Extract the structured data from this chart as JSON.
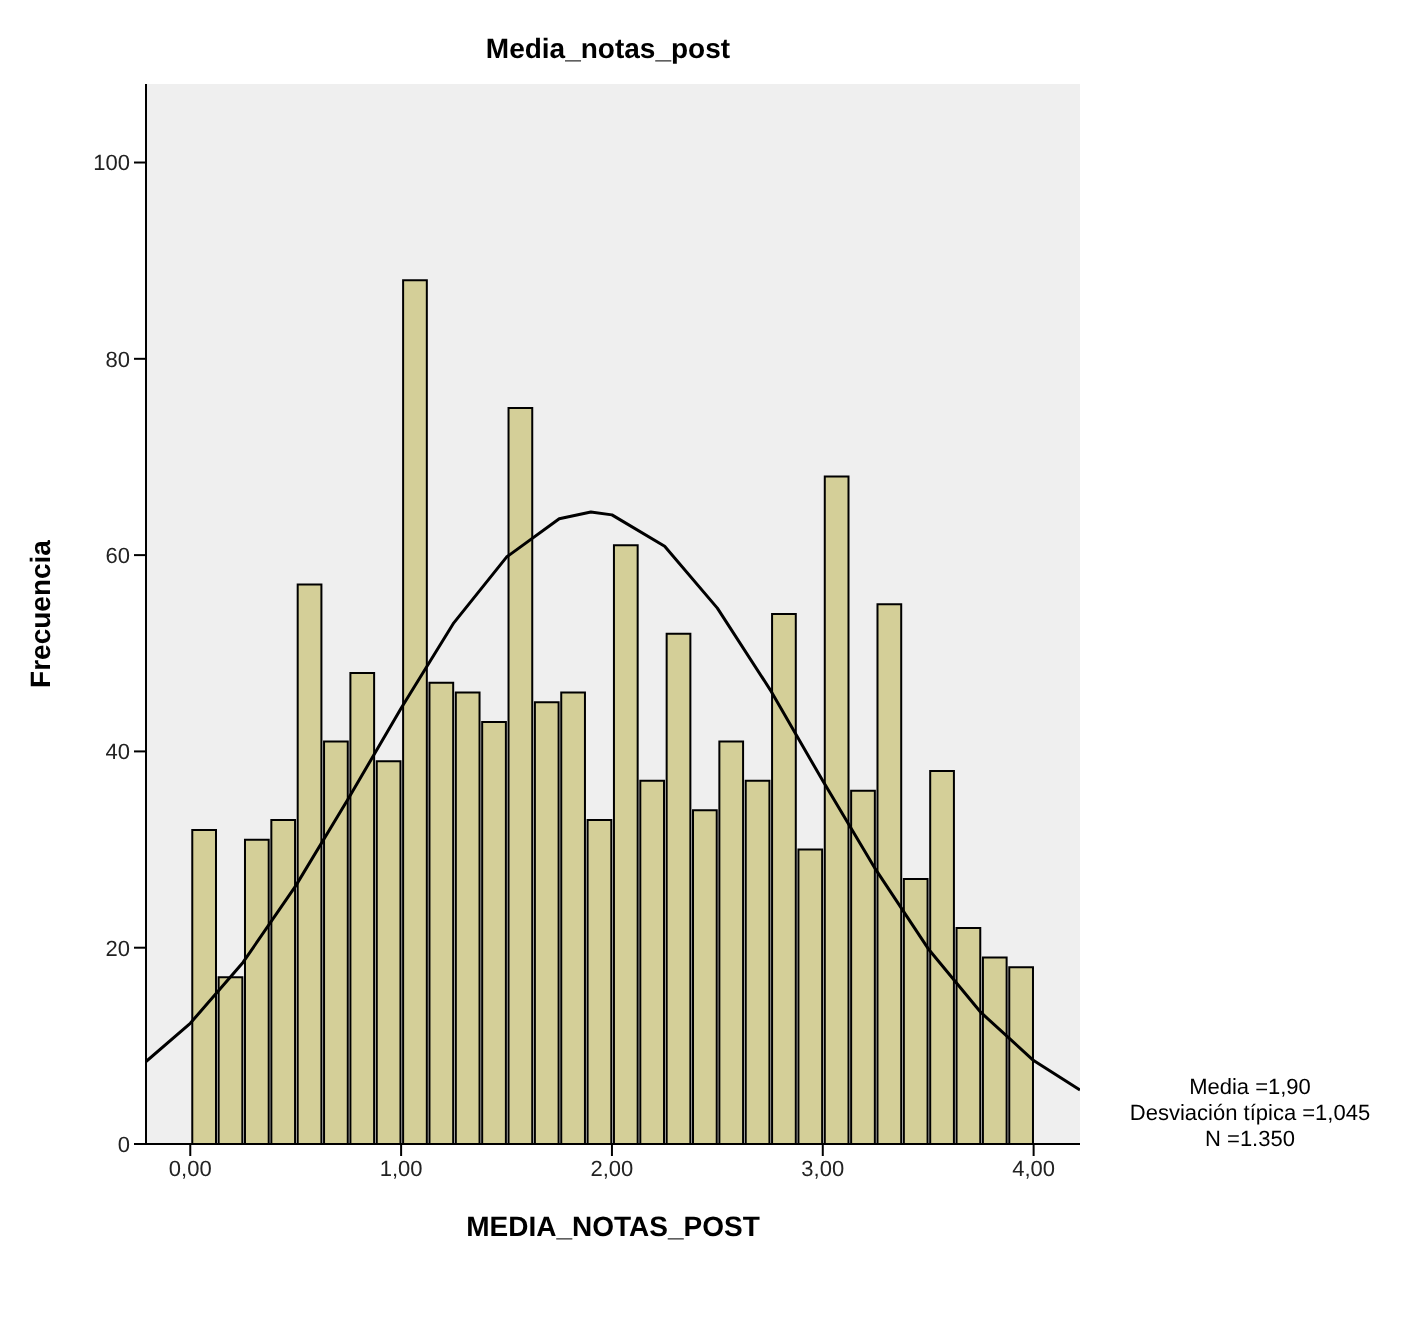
{
  "chart_data": {
    "type": "histogram",
    "title": "Media_notas_post",
    "xlabel": "MEDIA_NOTAS_POST",
    "ylabel": "Frecuencia",
    "bins": [
      0,
      0.125,
      0.25,
      0.375,
      0.5,
      0.625,
      0.75,
      0.875,
      1,
      1.125,
      1.25,
      1.375,
      1.5,
      1.625,
      1.75,
      1.875,
      2,
      2.125,
      2.25,
      2.375,
      2.5,
      2.625,
      2.75,
      2.875,
      3,
      3.125,
      3.25,
      3.375,
      3.5,
      3.625,
      3.75,
      3.875,
      4
    ],
    "series": [
      {
        "type": "histogram",
        "color": "#d4cf98",
        "values": [
          32,
          17,
          31,
          33,
          57,
          41,
          48,
          39,
          88,
          47,
          46,
          43,
          75,
          45,
          46,
          33,
          61,
          37,
          52,
          34,
          41,
          37,
          54,
          30,
          68,
          36,
          55,
          27,
          38,
          22,
          19,
          18
        ]
      },
      {
        "type": "line",
        "color": "#000000",
        "x": [
          -0.21,
          0,
          0.25,
          0.5,
          0.75,
          1,
          1.25,
          1.5,
          1.75,
          1.9,
          2,
          2.25,
          2.5,
          2.75,
          3,
          3.25,
          3.5,
          3.75,
          4,
          4.22
        ],
        "values": [
          8.4,
          12.3,
          18.5,
          26.3,
          35.2,
          44.4,
          53.1,
          59.8,
          63.7,
          64.4,
          64.1,
          60.9,
          54.6,
          46.3,
          37,
          28,
          19.9,
          13.4,
          8.5,
          5.5
        ]
      }
    ],
    "xlim": [
      -0.21,
      4.22
    ],
    "xticks": [
      {
        "value": 0,
        "label": "0,00"
      },
      {
        "value": 1,
        "label": "1,00"
      },
      {
        "value": 2,
        "label": "2,00"
      },
      {
        "value": 3,
        "label": "3,00"
      },
      {
        "value": 4,
        "label": "4,00"
      }
    ],
    "ylim": [
      0,
      108
    ],
    "yticks": [
      0,
      20,
      40,
      60,
      80,
      100
    ],
    "annotations": [
      "Media =1,90",
      "Desviación típica =1,045",
      "N =1.350"
    ]
  }
}
